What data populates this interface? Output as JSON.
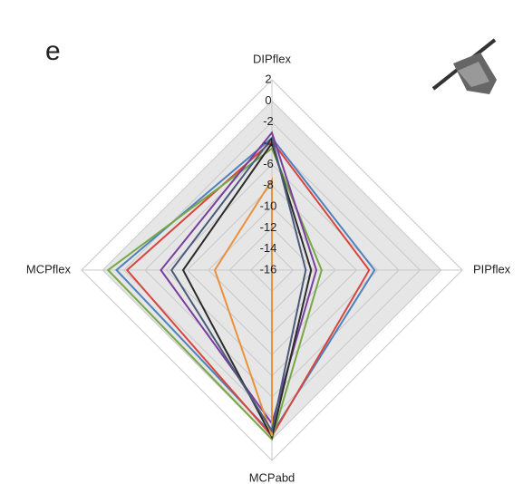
{
  "panel_label": "e",
  "chart_data": {
    "type": "radar",
    "categories": [
      "DIPflex",
      "PIPflex",
      "MCPabd",
      "MCPflex"
    ],
    "ylim": [
      -16,
      2
    ],
    "yticks": [
      -16,
      -14,
      -12,
      -10,
      -8,
      -6,
      -4,
      -2,
      0,
      2
    ],
    "grid": true,
    "series": [
      {
        "color": "#4f81bd",
        "values": [
          -3.5,
          -6.3,
          -0.5,
          -1.3
        ]
      },
      {
        "color": "#d9453c",
        "values": [
          -3.8,
          -6.8,
          -0.3,
          -2.3
        ]
      },
      {
        "color": "#77a846",
        "values": [
          -4.5,
          -11.3,
          0,
          -0.5
        ]
      },
      {
        "color": "#7a3f9d",
        "values": [
          -3.0,
          -11.8,
          -1.5,
          -5.5
        ]
      },
      {
        "color": "#2b2b2b",
        "values": [
          -4.0,
          -12.3,
          -0.2,
          -7.6
        ]
      },
      {
        "color": "#e8913f",
        "values": [
          -7.5,
          -16,
          -0.3,
          -10.6
        ]
      },
      {
        "color": "#4b5a7a",
        "values": [
          -3.5,
          -12.8,
          -0.8,
          -6.5
        ]
      }
    ]
  }
}
